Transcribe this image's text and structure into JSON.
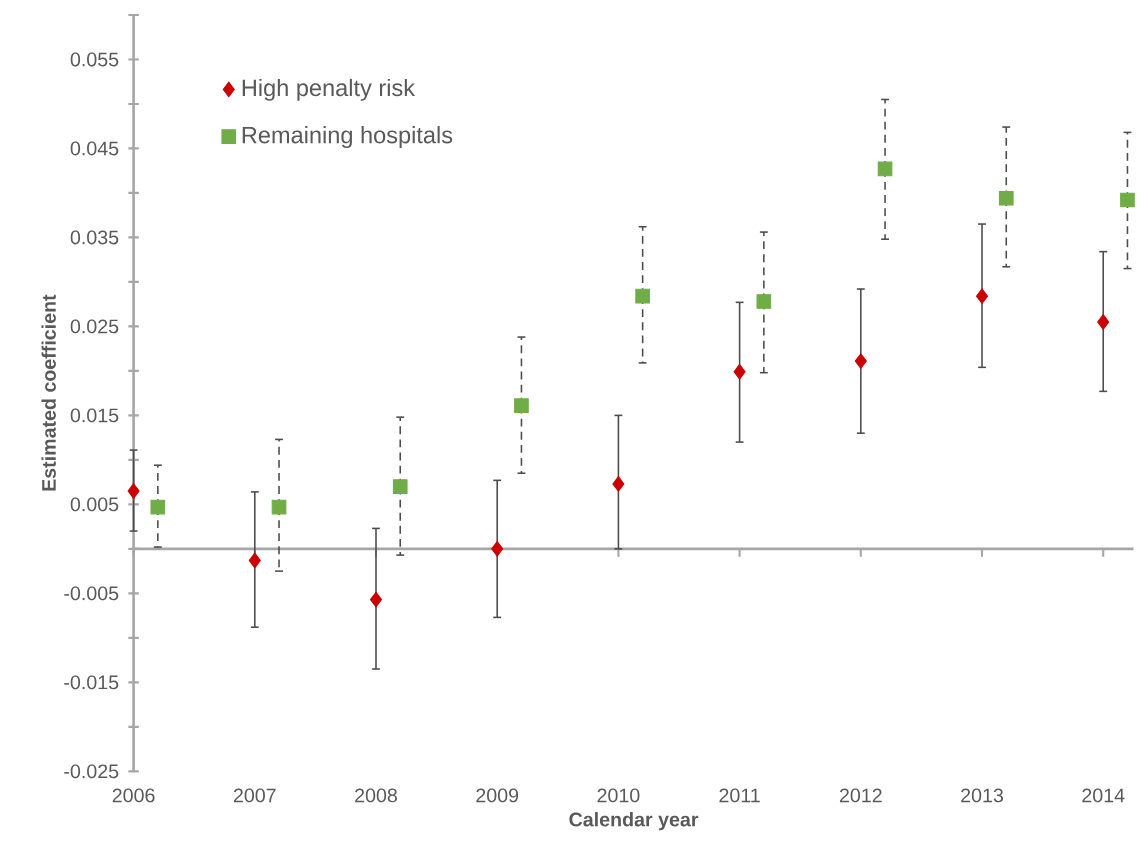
{
  "chart_data": {
    "type": "scatter",
    "xlabel": "Calendar year",
    "ylabel": "Estimated coefficient",
    "xlim": [
      2006,
      2014.25
    ],
    "ylim": [
      -0.025,
      0.06
    ],
    "xticks": [
      2006,
      2007,
      2008,
      2009,
      2010,
      2011,
      2012,
      2013,
      2014
    ],
    "yticks": [
      -0.025,
      {
        "value": -0.02,
        "label": null
      },
      -0.015,
      {
        "value": -0.01,
        "label": null
      },
      -0.005,
      {
        "value": 0,
        "label": null
      },
      0.005,
      {
        "value": 0.01,
        "label": null
      },
      0.015,
      {
        "value": 0.02,
        "label": null
      },
      0.025,
      {
        "value": 0.03,
        "label": null
      },
      0.035,
      {
        "value": 0.04,
        "label": null
      },
      0.045,
      {
        "value": 0.05,
        "label": null
      },
      0.055,
      {
        "value": 0.06,
        "label": null
      }
    ],
    "legend": "top left",
    "series": [
      {
        "name": "High penalty risk",
        "color": "#cc0000",
        "marker": "diamond",
        "x": [
          2006,
          2007,
          2008,
          2009,
          2010,
          2011,
          2012,
          2013,
          2014
        ],
        "values": [
          0.0065,
          -0.0013,
          -0.0057,
          0.0,
          0.0073,
          0.0199,
          0.0211,
          0.0284,
          0.0255
        ],
        "errors": [
          [
            0.002,
            0.0111
          ],
          [
            -0.0088,
            0.0064
          ],
          [
            -0.0135,
            0.0023
          ],
          [
            -0.0077,
            0.0077
          ],
          [
            0.0,
            0.015
          ],
          [
            0.012,
            0.0277
          ],
          [
            0.013,
            0.0292
          ],
          [
            0.0204,
            0.0365
          ],
          [
            0.0177,
            0.0334
          ]
        ]
      },
      {
        "name": "Remaining hospitals",
        "color": "#70ad47",
        "marker": "square",
        "x": [
          2006.2,
          2007.2,
          2008.2,
          2009.2,
          2010.2,
          2011.2,
          2012.2,
          2013.2,
          2014.2
        ],
        "values": [
          0.0047,
          0.0047,
          0.007,
          0.0161,
          0.0284,
          0.0278,
          0.0427,
          0.0394,
          0.0392
        ],
        "errors": [
          [
            0.0002,
            0.0094
          ],
          [
            -0.0025,
            0.0123
          ],
          [
            -0.0007,
            0.0148
          ],
          [
            0.0085,
            0.0238
          ],
          [
            0.0209,
            0.0362
          ],
          [
            0.0198,
            0.0356
          ],
          [
            0.0348,
            0.0505
          ],
          [
            0.0317,
            0.0474
          ],
          [
            0.0315,
            0.0468
          ]
        ]
      }
    ]
  }
}
